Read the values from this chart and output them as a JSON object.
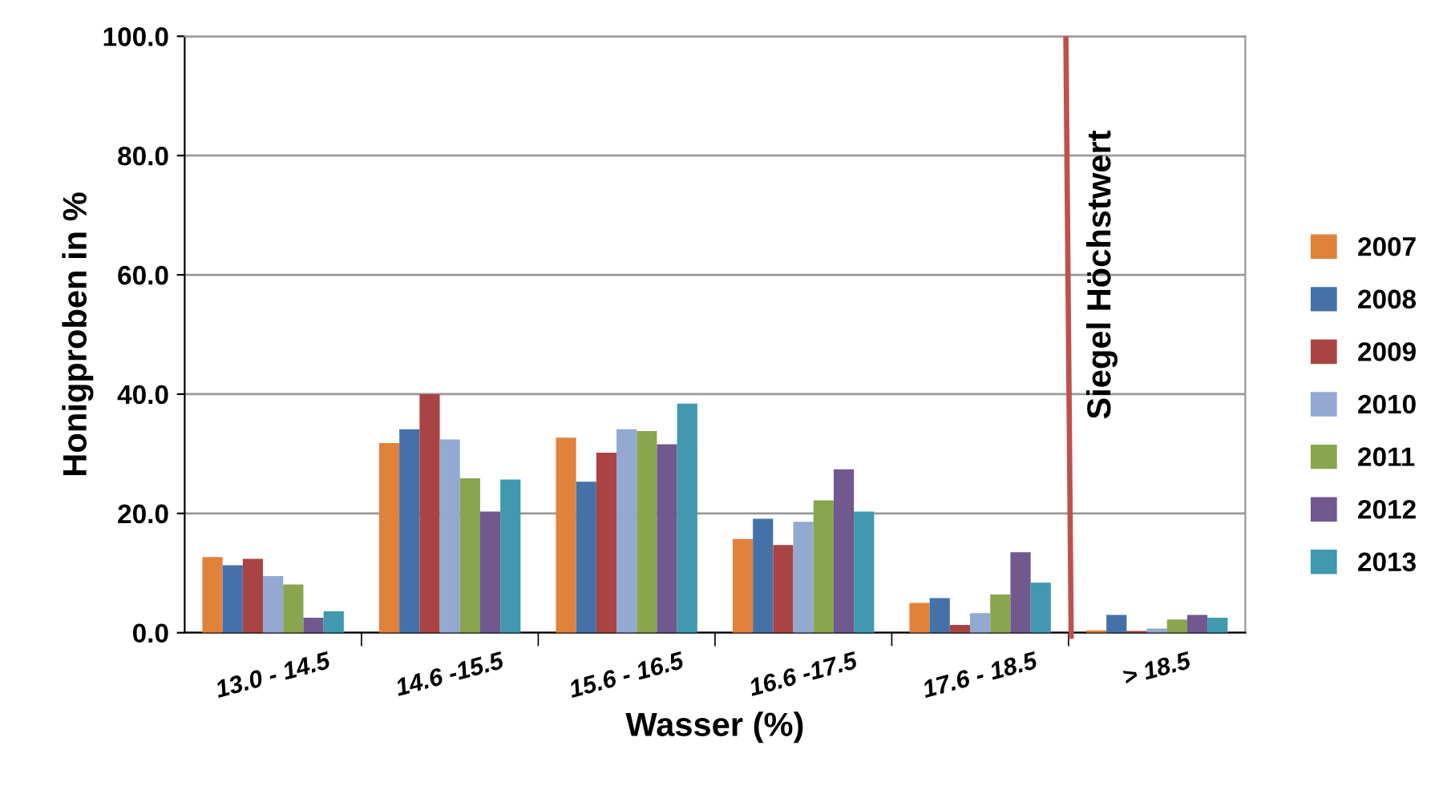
{
  "chart_data": {
    "type": "bar",
    "xlabel": "Wasser (%)",
    "ylabel": "Honigproben in %",
    "categories": [
      "13.0 - 14.5",
      "14.6 -15.5",
      "15.6 - 16.5",
      "16.6 -17.5",
      "17.6 - 18.5",
      "> 18.5"
    ],
    "series": [
      {
        "name": "2007",
        "color": "#e0823a",
        "values": [
          12.7,
          31.8,
          32.7,
          15.7,
          5.0,
          0.4
        ]
      },
      {
        "name": "2008",
        "color": "#4472a8",
        "values": [
          11.3,
          34.1,
          25.3,
          19.1,
          5.8,
          3.0
        ]
      },
      {
        "name": "2009",
        "color": "#aa4444",
        "values": [
          12.4,
          40.0,
          30.2,
          14.7,
          1.3,
          0.3
        ]
      },
      {
        "name": "2010",
        "color": "#93a9d2",
        "values": [
          9.5,
          32.4,
          34.1,
          18.6,
          3.3,
          0.7
        ]
      },
      {
        "name": "2011",
        "color": "#89a54e",
        "values": [
          8.1,
          25.9,
          33.8,
          22.2,
          6.4,
          2.2
        ]
      },
      {
        "name": "2012",
        "color": "#71588f",
        "values": [
          2.5,
          20.3,
          31.6,
          27.4,
          13.5,
          3.0
        ]
      },
      {
        "name": "2013",
        "color": "#4198af",
        "values": [
          3.6,
          25.7,
          38.4,
          20.3,
          8.4,
          2.5
        ]
      }
    ],
    "ylim": [
      0,
      100
    ],
    "yticks": [
      {
        "value": 0,
        "label": "0.0"
      },
      {
        "value": 20,
        "label": "20.0"
      },
      {
        "value": 40,
        "label": "40.0"
      },
      {
        "value": 60,
        "label": "60.0"
      },
      {
        "value": 80,
        "label": "80.0"
      },
      {
        "value": 100,
        "label": "100.0"
      }
    ],
    "annotations": [
      "Siegel Höchstwert"
    ],
    "grid": "y",
    "legend": "right"
  }
}
